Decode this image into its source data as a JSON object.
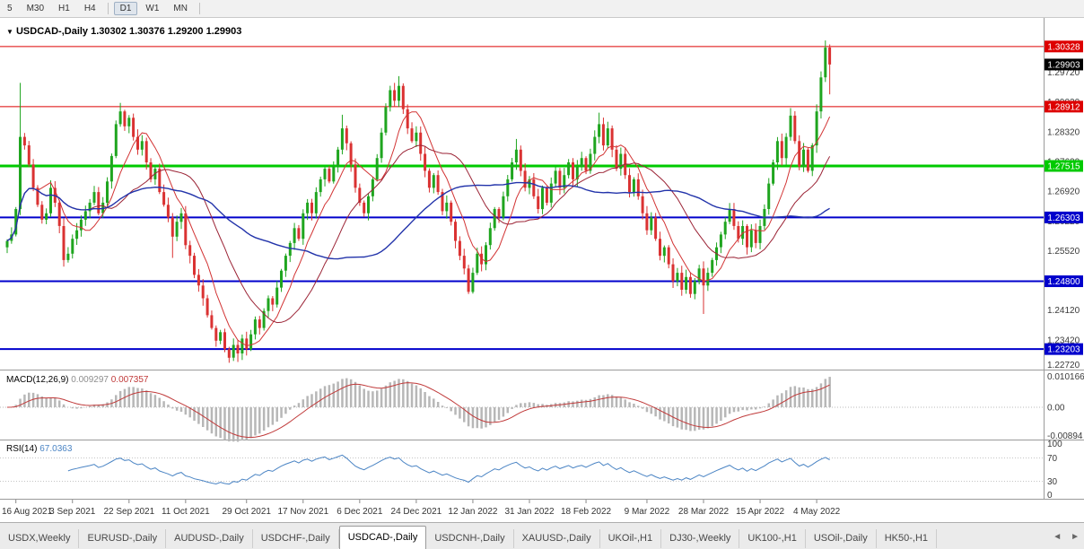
{
  "toolbar": {
    "timeframes": [
      "5",
      "M30",
      "H1",
      "H4",
      "D1",
      "W1",
      "MN"
    ],
    "active": "D1"
  },
  "header": {
    "collapse_icon": "▼",
    "symbol": "USDCAD-,Daily",
    "open": "1.30302",
    "high": "1.30376",
    "low": "1.29200",
    "close": "1.29903"
  },
  "current_price": {
    "label": "1.29903",
    "color": "#000000"
  },
  "levels": [
    {
      "price": 1.30328,
      "label": "1.30328",
      "color": "#dd0000",
      "width": 1
    },
    {
      "price": 1.28912,
      "label": "1.28912",
      "color": "#dd0000",
      "width": 1
    },
    {
      "price": 1.27515,
      "label": "1.27515",
      "color": "#00ca00",
      "width": 3
    },
    {
      "price": 1.26303,
      "label": "1.26303",
      "color": "#0000cc",
      "width": 2
    },
    {
      "price": 1.248,
      "label": "1.24800",
      "color": "#0000cc",
      "width": 2
    },
    {
      "price": 1.23203,
      "label": "1.23203",
      "color": "#0000cc",
      "width": 2
    }
  ],
  "y_axis": {
    "ticks": [
      "1.29720",
      "1.29020",
      "1.28320",
      "1.27620",
      "1.26920",
      "1.26220",
      "1.25520",
      "1.24820",
      "1.24120",
      "1.23420",
      "1.22720"
    ]
  },
  "x_axis": {
    "labels": [
      {
        "text": "16 Aug 2021",
        "bar": 2
      },
      {
        "text": "3 Sep 2021",
        "bar": 15
      },
      {
        "text": "22 Sep 2021",
        "bar": 28
      },
      {
        "text": "11 Oct 2021",
        "bar": 41
      },
      {
        "text": "29 Oct 2021",
        "bar": 55
      },
      {
        "text": "17 Nov 2021",
        "bar": 68
      },
      {
        "text": "6 Dec 2021",
        "bar": 81
      },
      {
        "text": "24 Dec 2021",
        "bar": 94
      },
      {
        "text": "12 Jan 2022",
        "bar": 107
      },
      {
        "text": "31 Jan 2022",
        "bar": 120
      },
      {
        "text": "18 Feb 2022",
        "bar": 133
      },
      {
        "text": "9 Mar 2022",
        "bar": 147
      },
      {
        "text": "28 Mar 2022",
        "bar": 160
      },
      {
        "text": "15 Apr 2022",
        "bar": 173
      },
      {
        "text": "4 May 2022",
        "bar": 186
      }
    ]
  },
  "chart_data": {
    "type": "candlestick",
    "title": "USDCAD-,Daily",
    "symbol": "USDCAD",
    "timeframe": "Daily",
    "price_range": [
      1.2272,
      1.31
    ],
    "up_color": "#1fa51f",
    "down_color": "#da3232",
    "open_first": 1.256,
    "closes": [
      1.2575,
      1.259,
      1.265,
      1.282,
      1.28,
      1.2755,
      1.27,
      1.266,
      1.2625,
      1.264,
      1.27,
      1.2665,
      1.261,
      1.253,
      1.2545,
      1.258,
      1.26,
      1.2625,
      1.2645,
      1.2665,
      1.269,
      1.264,
      1.2665,
      1.2715,
      1.2775,
      1.285,
      1.288,
      1.2845,
      1.2865,
      1.282,
      1.279,
      1.281,
      1.276,
      1.272,
      1.2745,
      1.269,
      1.266,
      1.263,
      1.2585,
      1.262,
      1.264,
      1.2565,
      1.254,
      1.2495,
      1.247,
      1.244,
      1.24,
      1.237,
      1.234,
      1.236,
      1.232,
      1.23,
      1.233,
      1.231,
      1.2345,
      1.232,
      1.2355,
      1.239,
      1.237,
      1.241,
      1.244,
      1.2425,
      1.2465,
      1.2505,
      1.254,
      1.257,
      1.2605,
      1.258,
      1.264,
      1.2665,
      1.264,
      1.269,
      1.272,
      1.2745,
      1.2715,
      1.275,
      1.279,
      1.284,
      1.2805,
      1.2755,
      1.27,
      1.2665,
      1.264,
      1.268,
      1.272,
      1.277,
      1.283,
      1.289,
      1.293,
      1.2905,
      1.294,
      1.2885,
      1.284,
      1.281,
      1.283,
      1.278,
      1.274,
      1.27,
      1.273,
      1.269,
      1.2645,
      1.2665,
      1.262,
      1.2575,
      1.254,
      1.251,
      1.2455,
      1.25,
      1.2545,
      1.252,
      1.2565,
      1.2605,
      1.265,
      1.263,
      1.268,
      1.272,
      1.276,
      1.279,
      1.274,
      1.27,
      1.272,
      1.268,
      1.265,
      1.27,
      1.2665,
      1.271,
      1.274,
      1.27,
      1.273,
      1.276,
      1.272,
      1.275,
      1.277,
      1.274,
      1.278,
      1.282,
      1.285,
      1.28,
      1.284,
      1.279,
      1.2745,
      1.278,
      1.273,
      1.269,
      1.272,
      1.268,
      1.264,
      1.26,
      1.263,
      1.258,
      1.254,
      1.256,
      1.252,
      1.248,
      1.25,
      1.246,
      1.249,
      1.245,
      1.248,
      1.251,
      1.247,
      1.25,
      1.253,
      1.256,
      1.259,
      1.262,
      1.265,
      1.261,
      1.258,
      1.261,
      1.256,
      1.26,
      1.257,
      1.261,
      1.265,
      1.271,
      1.276,
      1.281,
      1.277,
      1.282,
      1.287,
      1.281,
      1.275,
      1.279,
      1.274,
      1.28,
      1.288,
      1.296,
      1.303,
      1.29903
    ],
    "wick_overrides": {
      "3": {
        "h": 1.2947
      },
      "26": {
        "h": 1.29
      },
      "38": {
        "l": 1.2535
      },
      "51": {
        "l": 1.2288
      },
      "53": {
        "l": 1.229
      },
      "77": {
        "h": 1.2872
      },
      "90": {
        "h": 1.2963
      },
      "106": {
        "l": 1.245
      },
      "117": {
        "h": 1.2815
      },
      "136": {
        "h": 1.2877
      },
      "160": {
        "l": 1.2403
      },
      "188": {
        "h": 1.3047
      },
      "189": {
        "o": 1.30302,
        "h": 1.30376,
        "l": 1.292
      }
    },
    "overlays": [
      {
        "name": "ma-fast",
        "period": 8,
        "color": "#d23333",
        "width": 1
      },
      {
        "name": "ma-medium",
        "period": 20,
        "color": "#9b2335",
        "width": 1
      },
      {
        "name": "ma-slow",
        "period": 45,
        "color": "#2233aa",
        "width": 1.4
      }
    ]
  },
  "macd": {
    "name": "MACD(12,26,9)",
    "main_value": "0.009297",
    "signal_value": "0.007357",
    "params": [
      12,
      26,
      9
    ],
    "axis_labels": [
      "0.010166",
      "0.00",
      "-0.00894"
    ],
    "range": [
      -0.0094,
      0.0107
    ],
    "histogram_color": "#b7b7b7",
    "signal_color": "#c03a3a"
  },
  "rsi": {
    "name": "RSI(14)",
    "value": "67.0363",
    "period": 14,
    "levels": [
      70,
      30
    ],
    "axis_labels": [
      "100",
      "70",
      "30",
      "0"
    ],
    "line_color": "#4a84c4"
  },
  "tabs": {
    "items": [
      "USDX,Weekly",
      "EURUSD-,Daily",
      "AUDUSD-,Daily",
      "USDCHF-,Daily",
      "USDCAD-,Daily",
      "USDCNH-,Daily",
      "XAUUSD-,Daily",
      "UKOil-,H1",
      "DJ30-,Weekly",
      "UK100-,H1",
      "USOil-,Daily",
      "HK50-,H1"
    ],
    "active_index": 4,
    "scroll_left_icon": "◄",
    "scroll_right_icon": "►"
  }
}
